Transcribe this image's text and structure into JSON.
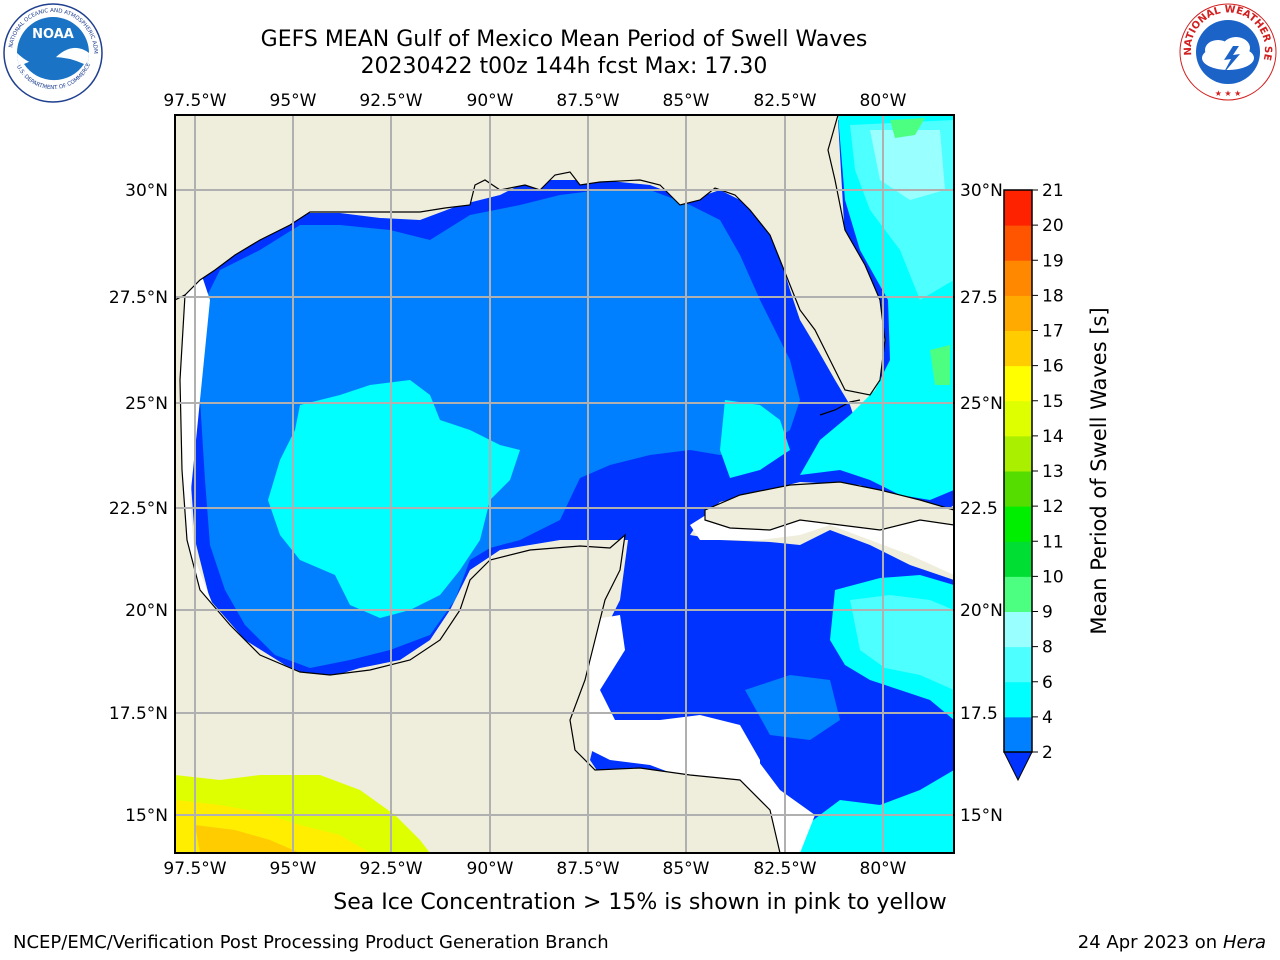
{
  "header": {
    "title_line1": "GEFS MEAN Gulf of Mexico Mean Period of Swell Waves",
    "title_line2": "20230422 t00z 144h fcst   Max: 17.30"
  },
  "logos": {
    "left": "NOAA - National Oceanic and Atmospheric Administration - U.S. Department of Commerce",
    "right": "National Weather Service"
  },
  "map": {
    "lon_labels": [
      "97.5°W",
      "95°W",
      "92.5°W",
      "90°W",
      "87.5°W",
      "85°W",
      "82.5°W",
      "80°W"
    ],
    "lat_labels": [
      "30°N",
      "27.5°N",
      "25°N",
      "22.5°N",
      "20°N",
      "17.5°N",
      "15°N"
    ],
    "right_lat_labels": [
      "30°N",
      "27.5",
      "25°N",
      "22.5",
      "20°N",
      "17.5",
      "15°N"
    ],
    "land_color": "#efeddc",
    "grid_color": "#b0b0b0"
  },
  "colorbar": {
    "label": "Mean Period of Swell Waves [s]",
    "ticks": [
      "2",
      "4",
      "6",
      "8",
      "9",
      "10",
      "11",
      "12",
      "13",
      "14",
      "15",
      "16",
      "17",
      "18",
      "19",
      "20",
      "21"
    ],
    "colors": [
      "#0033ff",
      "#0080ff",
      "#00ffff",
      "#4dffff",
      "#99ffff",
      "#4dff80",
      "#00dd33",
      "#00ee00",
      "#55dd00",
      "#aaee00",
      "#ddff00",
      "#ffff00",
      "#ffcc00",
      "#ffaa00",
      "#ff8800",
      "#ff5500",
      "#ff2200",
      "#ff0000"
    ]
  },
  "caption": "Sea Ice Concentration > 15% is shown in pink to yellow",
  "footer": {
    "left": "NCEP/EMC/Verification Post Processing Product Generation Branch",
    "date": "24 Apr 2023 on ",
    "host": "Hera"
  }
}
